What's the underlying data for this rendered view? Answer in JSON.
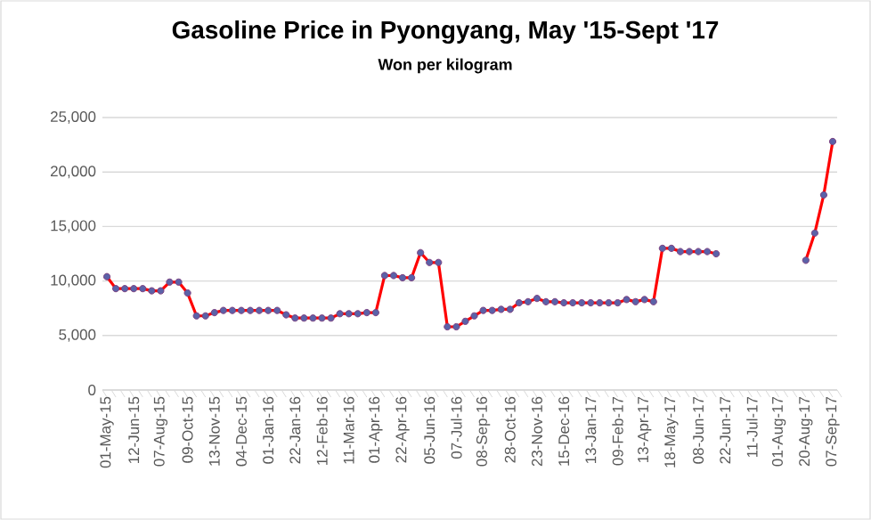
{
  "chart_data": {
    "type": "line",
    "title": "Gasoline Price in Pyongyang, May '15-Sept '17",
    "subtitle": "Won per kilogram",
    "categories": [
      "01-May-15",
      null,
      null,
      "12-Jun-15",
      null,
      null,
      "07-Aug-15",
      null,
      null,
      "09-Oct-15",
      null,
      null,
      "13-Nov-15",
      null,
      null,
      "04-Dec-15",
      null,
      null,
      "01-Jan-16",
      null,
      null,
      "22-Jan-16",
      null,
      null,
      "12-Feb-16",
      null,
      null,
      "11-Mar-16",
      null,
      null,
      "01-Apr-16",
      null,
      null,
      "22-Apr-16",
      null,
      null,
      "05-Jun-16",
      null,
      null,
      "07-Jul-16",
      null,
      null,
      "08-Sep-16",
      null,
      null,
      "28-Oct-16",
      null,
      null,
      "23-Nov-16",
      null,
      null,
      "15-Dec-16",
      null,
      null,
      "13-Jan-17",
      null,
      null,
      "09-Feb-17",
      null,
      null,
      "13-Apr-17",
      null,
      null,
      "18-May-17",
      null,
      null,
      "08-Jun-17",
      null,
      null,
      "22-Jun-17",
      null,
      null,
      "11-Jul-17",
      null,
      null,
      "01-Aug-17",
      null,
      null,
      "20-Aug-17",
      null,
      null,
      "07-Sep-17"
    ],
    "series": [
      {
        "color": "#ff0000",
        "values": [
          10400,
          9300,
          9300,
          9300,
          9300,
          9100,
          9100,
          9900,
          9900,
          8900,
          6800,
          6800,
          7100,
          7300,
          7300,
          7300,
          7300,
          7300,
          7300,
          7300,
          6900,
          6600,
          6600,
          6600,
          6600,
          6600,
          7000,
          7000,
          7000,
          7100,
          7100,
          10500,
          10500,
          10300,
          10300,
          12600,
          11700,
          11700,
          5800,
          5800,
          6300,
          6800,
          7300,
          7300,
          7400,
          7400,
          8000,
          8100,
          8400,
          8100,
          8100,
          8000,
          8000,
          8000,
          8000,
          8000,
          8000,
          8000,
          8300,
          8100,
          8300,
          8100,
          13000,
          13000,
          12700,
          12700,
          12700,
          12700,
          12500,
          null,
          null,
          null,
          null,
          null,
          null,
          null,
          null,
          null,
          11900,
          14400,
          17900,
          22800
        ]
      }
    ],
    "ylim": [
      0,
      25000
    ],
    "yticks": [
      0,
      {
        "value": 5000,
        "label": "5,000"
      },
      {
        "value": 10000,
        "label": "10,000"
      },
      {
        "value": 15000,
        "label": "15,000"
      },
      {
        "value": 20000,
        "label": "20,000"
      },
      {
        "value": 25000,
        "label": "25,000"
      }
    ],
    "grid": "y",
    "marker": "circle",
    "line_style": "solid"
  }
}
